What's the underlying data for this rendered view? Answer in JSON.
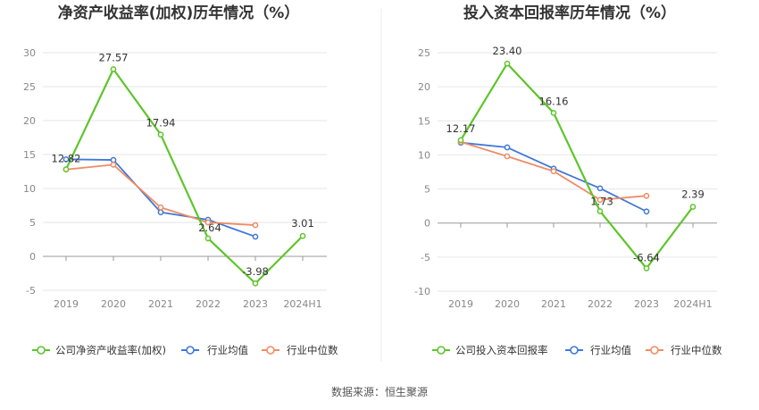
{
  "source": "数据来源：恒生聚源",
  "chart_data": [
    {
      "type": "line",
      "title": "净资产收益率(加权)历年情况（%）",
      "categories": [
        "2019",
        "2020",
        "2021",
        "2022",
        "2023",
        "2024H1"
      ],
      "ylim": [
        -5,
        30
      ],
      "yticks": [
        -5,
        0,
        5,
        10,
        15,
        20,
        25,
        30
      ],
      "grid": true,
      "legend_position": "bottom",
      "series": [
        {
          "name": "公司净资产收益率(加权)",
          "color": "#5ec52a",
          "values": [
            12.82,
            27.57,
            17.94,
            2.64,
            -3.98,
            3.01
          ],
          "labels": [
            "12.82",
            "27.57",
            "17.94",
            "2.64",
            "-3.98",
            "3.01"
          ]
        },
        {
          "name": "行业均值",
          "color": "#3f78d8",
          "values": [
            14.3,
            14.2,
            6.5,
            5.4,
            2.9,
            null
          ]
        },
        {
          "name": "行业中位数",
          "color": "#f08b64",
          "values": [
            12.8,
            13.5,
            7.2,
            5.0,
            4.6,
            null
          ]
        }
      ]
    },
    {
      "type": "line",
      "title": "投入资本回报率历年情况（%）",
      "categories": [
        "2019",
        "2020",
        "2021",
        "2022",
        "2023",
        "2024H1"
      ],
      "ylim": [
        -10,
        25
      ],
      "yticks": [
        -10,
        -5,
        0,
        5,
        10,
        15,
        20,
        25
      ],
      "grid": true,
      "legend_position": "bottom",
      "series": [
        {
          "name": "公司投入资本回报率",
          "color": "#5ec52a",
          "values": [
            12.17,
            23.4,
            16.16,
            1.73,
            -6.64,
            2.39
          ],
          "labels": [
            "12.17",
            "23.40",
            "16.16",
            "1.73",
            "-6.64",
            "2.39"
          ]
        },
        {
          "name": "行业均值",
          "color": "#3f78d8",
          "values": [
            11.8,
            11.1,
            8.0,
            5.1,
            1.7,
            null
          ]
        },
        {
          "name": "行业中位数",
          "color": "#f08b64",
          "values": [
            11.9,
            9.8,
            7.6,
            3.4,
            4.0,
            null
          ]
        }
      ]
    }
  ]
}
